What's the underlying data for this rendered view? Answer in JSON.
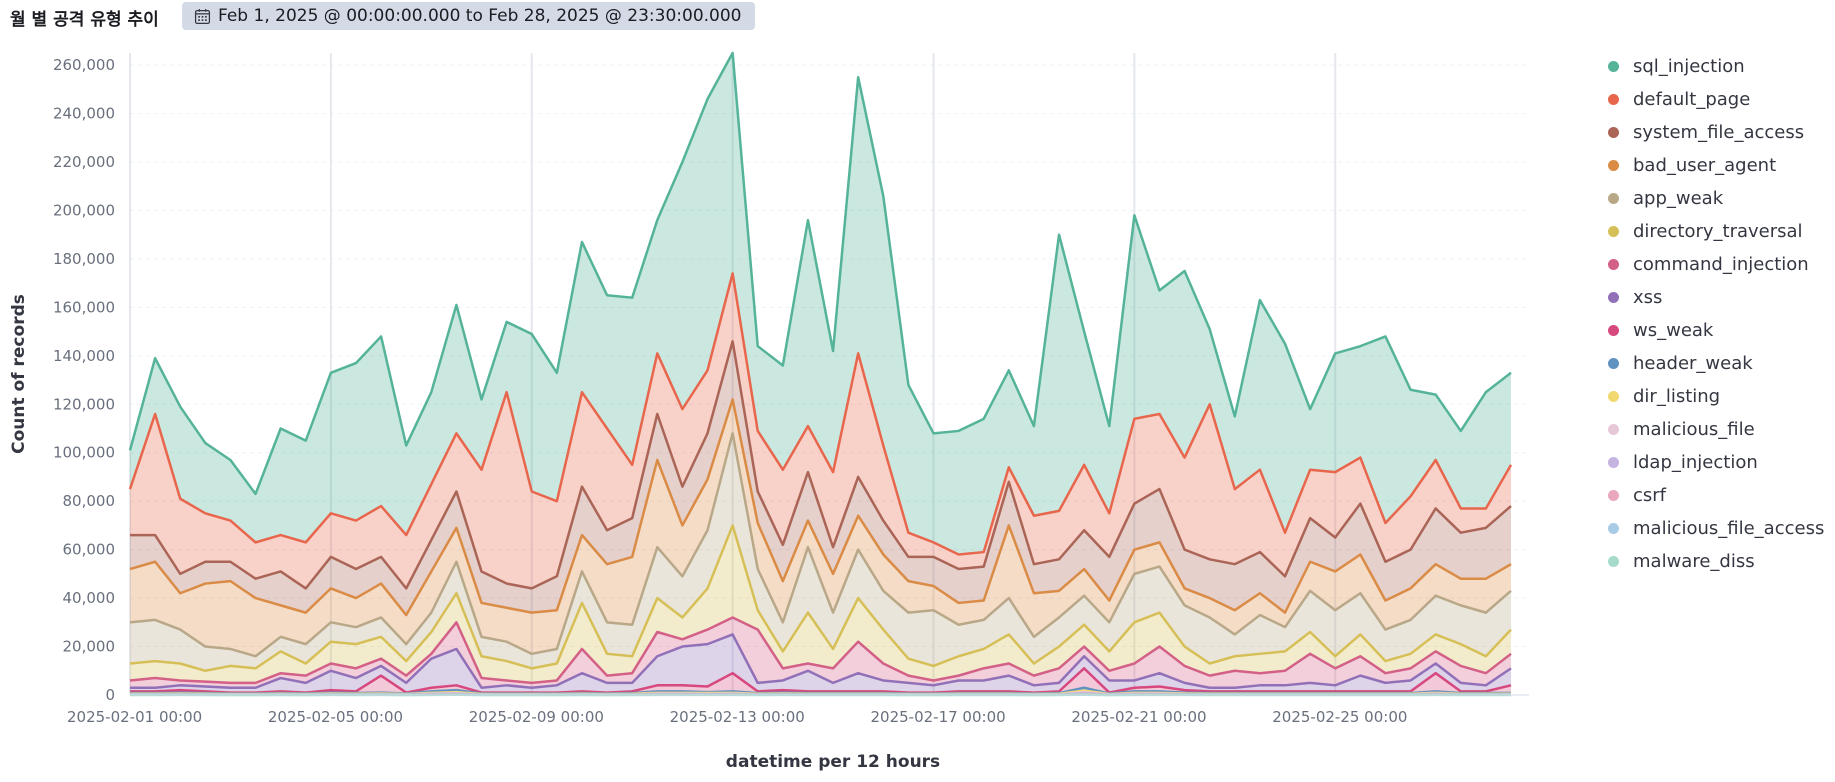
{
  "header": {
    "title": "월 별 공격 유형 추이",
    "time_range": "Feb 1, 2025 @ 00:00:00.000 to Feb 28, 2025 @ 23:30:00.000",
    "calendar_icon": "calendar-icon"
  },
  "chart_data": {
    "type": "area",
    "stacked": true,
    "xlabel": "datetime per 12 hours",
    "ylabel": "Count of records",
    "ylim": [
      0,
      265000
    ],
    "x_ticks": [
      "2025-02-01 00:00",
      "2025-02-05 00:00",
      "2025-02-09 00:00",
      "2025-02-13 00:00",
      "2025-02-17 00:00",
      "2025-02-21 00:00",
      "2025-02-25 00:00"
    ],
    "y_ticks": [
      "0",
      "20,000",
      "40,000",
      "60,000",
      "80,000",
      "100,000",
      "120,000",
      "140,000",
      "160,000",
      "180,000",
      "200,000",
      "220,000",
      "240,000",
      "260,000"
    ],
    "y_tick_values": [
      0,
      20000,
      40000,
      60000,
      80000,
      100000,
      120000,
      140000,
      160000,
      180000,
      200000,
      220000,
      240000,
      260000
    ],
    "x_start": "2025-02-01 00:00",
    "x_step_hours": 12,
    "grid": true,
    "legend_position": "right",
    "series_total_tops": {
      "sql_injection": [
        101000,
        139000,
        119000,
        104000,
        97000,
        83000,
        110000,
        105000,
        133000,
        137000,
        148000,
        103000,
        125000,
        161000,
        122000,
        154000,
        149000,
        133000,
        187000,
        165000,
        164000,
        196000,
        220000,
        246000,
        265000,
        144000,
        136000,
        196000,
        142000,
        255000,
        206000,
        128000,
        108000,
        109000,
        114000,
        134000,
        111000,
        190000,
        150000,
        111000,
        198000,
        167000,
        175000,
        151000,
        115000,
        163000,
        145000,
        118000,
        141000,
        144000,
        148000,
        126000,
        124000,
        109000,
        125000,
        133000
      ],
      "default_page": [
        85000,
        116000,
        81000,
        75000,
        72000,
        63000,
        66000,
        63000,
        75000,
        72000,
        78000,
        66000,
        87000,
        108000,
        93000,
        125000,
        84000,
        80000,
        125000,
        110000,
        95000,
        141000,
        118000,
        134000,
        174000,
        109000,
        93000,
        111000,
        92000,
        141000,
        103000,
        67000,
        63000,
        58000,
        59000,
        94000,
        74000,
        76000,
        95000,
        75000,
        114000,
        116000,
        98000,
        120000,
        85000,
        93000,
        67000,
        93000,
        92000,
        98000,
        71000,
        82000,
        97000,
        77000,
        77000,
        95000
      ],
      "system_file_access": [
        66000,
        66000,
        50000,
        55000,
        55000,
        48000,
        51000,
        44000,
        57000,
        52000,
        57000,
        44000,
        64000,
        84000,
        51000,
        46000,
        44000,
        49000,
        86000,
        68000,
        73000,
        116000,
        86000,
        108000,
        146000,
        84000,
        62000,
        92000,
        61000,
        90000,
        72000,
        57000,
        57000,
        52000,
        53000,
        88000,
        54000,
        56000,
        68000,
        57000,
        79000,
        85000,
        60000,
        56000,
        54000,
        59000,
        49000,
        73000,
        65000,
        79000,
        55000,
        60000,
        77000,
        67000,
        69000,
        78000
      ],
      "bad_user_agent": [
        52000,
        55000,
        42000,
        46000,
        47000,
        40000,
        37000,
        34000,
        44000,
        40000,
        46000,
        33000,
        51000,
        69000,
        38000,
        36000,
        34000,
        35000,
        66000,
        54000,
        57000,
        97000,
        70000,
        89000,
        122000,
        71000,
        47000,
        72000,
        50000,
        74000,
        58000,
        47000,
        45000,
        38000,
        39000,
        70000,
        42000,
        43000,
        52000,
        39000,
        60000,
        63000,
        44000,
        40000,
        35000,
        42000,
        34000,
        55000,
        51000,
        58000,
        39000,
        44000,
        54000,
        48000,
        48000,
        54000
      ],
      "app_weak": [
        30000,
        31000,
        27000,
        20000,
        19000,
        16000,
        24000,
        21000,
        30000,
        28000,
        32000,
        21000,
        34000,
        55000,
        24000,
        22000,
        17000,
        19000,
        51000,
        30000,
        29000,
        61000,
        49000,
        68000,
        108000,
        52000,
        30000,
        61000,
        34000,
        60000,
        43000,
        34000,
        35000,
        29000,
        31000,
        40000,
        24000,
        32000,
        41000,
        30000,
        50000,
        53000,
        37000,
        32000,
        25000,
        33000,
        28000,
        43000,
        35000,
        42000,
        27000,
        31000,
        41000,
        37000,
        34000,
        43000
      ],
      "directory_traversal": [
        13000,
        14000,
        13000,
        10000,
        12000,
        11000,
        18000,
        13000,
        22000,
        21000,
        24000,
        14000,
        26000,
        42000,
        16000,
        14000,
        11000,
        13000,
        38000,
        17000,
        16000,
        40000,
        32000,
        44000,
        70000,
        35000,
        18000,
        34000,
        19000,
        40000,
        27000,
        15000,
        12000,
        16000,
        19000,
        25000,
        13000,
        20000,
        29000,
        18000,
        30000,
        34000,
        20000,
        13000,
        16000,
        17000,
        18000,
        26000,
        16000,
        25000,
        14000,
        17000,
        25000,
        21000,
        16000,
        27000
      ],
      "command_injection": [
        6000,
        7000,
        6000,
        5500,
        5000,
        5000,
        9000,
        8000,
        13000,
        11000,
        15000,
        8000,
        17000,
        30000,
        7000,
        6000,
        5000,
        6000,
        19000,
        8000,
        9000,
        26000,
        23000,
        27000,
        32000,
        27000,
        11000,
        13000,
        11000,
        22000,
        13000,
        8000,
        6000,
        8000,
        11000,
        13000,
        8000,
        11000,
        20000,
        10000,
        13000,
        20000,
        12000,
        8000,
        10000,
        9000,
        10000,
        17000,
        11000,
        16000,
        9000,
        11000,
        18000,
        12000,
        9000,
        17000
      ],
      "xss": [
        3000,
        3000,
        4000,
        3500,
        3000,
        3000,
        7000,
        5000,
        10000,
        7000,
        12000,
        5000,
        15000,
        19000,
        3000,
        4000,
        3000,
        4000,
        9000,
        5000,
        5000,
        16000,
        20000,
        21000,
        25000,
        5000,
        6000,
        10000,
        5000,
        9000,
        6000,
        5000,
        4000,
        6000,
        6000,
        8000,
        4000,
        5000,
        16000,
        6000,
        6000,
        9000,
        5000,
        3000,
        3000,
        4000,
        4000,
        5000,
        4000,
        8000,
        5000,
        6000,
        13000,
        5000,
        4000,
        11000
      ],
      "ws_weak": [
        1500,
        1500,
        2000,
        1500,
        1000,
        1000,
        1500,
        1000,
        2000,
        1500,
        8000,
        1000,
        3000,
        4000,
        1000,
        1000,
        1000,
        1000,
        1500,
        1000,
        1500,
        4000,
        4000,
        3500,
        9000,
        1500,
        2000,
        1500,
        1500,
        1500,
        1500,
        1000,
        1000,
        1500,
        1500,
        1500,
        1000,
        1500,
        11000,
        1000,
        3000,
        3500,
        2000,
        1500,
        1500,
        1500,
        1500,
        1500,
        1500,
        1500,
        1500,
        1500,
        9000,
        1500,
        1500,
        4000
      ],
      "header_weak": [
        800,
        800,
        1000,
        800,
        600,
        600,
        800,
        600,
        1000,
        800,
        1000,
        600,
        1500,
        2000,
        600,
        600,
        600,
        600,
        800,
        600,
        800,
        1500,
        1500,
        1200,
        1500,
        800,
        1000,
        800,
        800,
        800,
        800,
        600,
        600,
        800,
        800,
        800,
        600,
        800,
        3000,
        600,
        1500,
        1500,
        1000,
        800,
        800,
        800,
        800,
        800,
        800,
        800,
        800,
        800,
        1500,
        800,
        800,
        800
      ],
      "dir_listing": [
        500,
        500,
        600,
        500,
        400,
        400,
        500,
        400,
        600,
        500,
        600,
        400,
        900,
        1200,
        400,
        400,
        400,
        400,
        500,
        400,
        500,
        900,
        900,
        800,
        900,
        500,
        600,
        500,
        500,
        500,
        500,
        400,
        400,
        500,
        500,
        500,
        400,
        500,
        1800,
        400,
        900,
        900,
        600,
        500,
        500,
        500,
        500,
        500,
        500,
        500,
        500,
        500,
        900,
        500,
        500,
        500
      ],
      "malicious_file": [
        300,
        300,
        400,
        300,
        250,
        250,
        300,
        250,
        400,
        300,
        400,
        250,
        600,
        800,
        250,
        250,
        250,
        250,
        300,
        250,
        300,
        600,
        600,
        500,
        600,
        300,
        400,
        300,
        300,
        300,
        300,
        250,
        250,
        300,
        300,
        300,
        250,
        300,
        1200,
        250,
        600,
        600,
        400,
        300,
        300,
        300,
        300,
        300,
        300,
        300,
        300,
        300,
        600,
        300,
        300,
        300
      ],
      "ldap_injection": [
        200,
        200,
        250,
        200,
        150,
        150,
        200,
        150,
        250,
        200,
        250,
        150,
        400,
        500,
        150,
        150,
        150,
        150,
        200,
        150,
        200,
        400,
        400,
        300,
        400,
        200,
        250,
        200,
        200,
        200,
        200,
        150,
        150,
        200,
        200,
        200,
        150,
        200,
        800,
        150,
        400,
        400,
        250,
        200,
        200,
        200,
        200,
        200,
        200,
        200,
        200,
        200,
        400,
        200,
        200,
        200
      ],
      "csrf": [
        120,
        120,
        150,
        120,
        100,
        100,
        120,
        100,
        150,
        120,
        150,
        100,
        250,
        300,
        100,
        100,
        100,
        100,
        120,
        100,
        120,
        250,
        250,
        200,
        250,
        120,
        150,
        120,
        120,
        120,
        120,
        100,
        100,
        120,
        120,
        120,
        100,
        120,
        500,
        100,
        250,
        250,
        150,
        120,
        120,
        120,
        120,
        120,
        120,
        120,
        120,
        120,
        250,
        120,
        120,
        120
      ],
      "malicious_file_access": [
        60,
        60,
        80,
        60,
        50,
        50,
        60,
        50,
        80,
        60,
        80,
        50,
        120,
        150,
        50,
        50,
        50,
        50,
        60,
        50,
        60,
        120,
        120,
        100,
        120,
        60,
        80,
        60,
        60,
        60,
        60,
        50,
        50,
        60,
        60,
        60,
        50,
        60,
        250,
        50,
        120,
        120,
        80,
        60,
        60,
        60,
        60,
        60,
        60,
        60,
        60,
        60,
        120,
        60,
        60,
        60
      ],
      "malware_diss": [
        30,
        30,
        40,
        30,
        25,
        25,
        30,
        25,
        40,
        30,
        40,
        25,
        60,
        80,
        25,
        25,
        25,
        25,
        30,
        25,
        30,
        60,
        60,
        50,
        60,
        30,
        40,
        30,
        30,
        30,
        30,
        25,
        25,
        30,
        30,
        30,
        25,
        30,
        120,
        25,
        60,
        60,
        40,
        30,
        30,
        30,
        30,
        30,
        30,
        30,
        30,
        30,
        60,
        30,
        30,
        30
      ]
    },
    "series": [
      {
        "name": "sql_injection",
        "color": "#54b399"
      },
      {
        "name": "default_page",
        "color": "#e7664c"
      },
      {
        "name": "system_file_access",
        "color": "#aa6556"
      },
      {
        "name": "bad_user_agent",
        "color": "#da8b45"
      },
      {
        "name": "app_weak",
        "color": "#b9a888"
      },
      {
        "name": "directory_traversal",
        "color": "#d6bf57"
      },
      {
        "name": "command_injection",
        "color": "#d36086"
      },
      {
        "name": "xss",
        "color": "#9170b8"
      },
      {
        "name": "ws_weak",
        "color": "#d6487e"
      },
      {
        "name": "header_weak",
        "color": "#6092c0"
      },
      {
        "name": "dir_listing",
        "color": "#f1d86f"
      },
      {
        "name": "malicious_file",
        "color": "#e7c8d8"
      },
      {
        "name": "ldap_injection",
        "color": "#c5b3e0"
      },
      {
        "name": "csrf",
        "color": "#e9a7bd"
      },
      {
        "name": "malicious_file_access",
        "color": "#a8cbe6"
      },
      {
        "name": "malware_diss",
        "color": "#a6dbcc"
      }
    ]
  }
}
